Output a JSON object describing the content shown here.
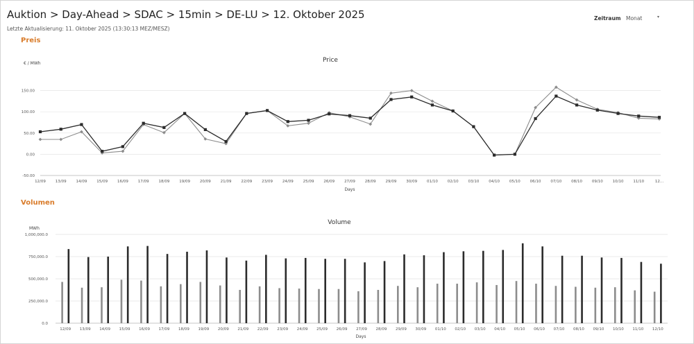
{
  "header": {
    "title": "Auktion > Day-Ahead > SDAC > 15min > DE-LU > 12. Oktober 2025",
    "last_update": "Letzte Aktualisierung: 11. Oktober 2025 (13:30:13 MEZ/MESZ)"
  },
  "controls": {
    "period_label": "Zeitraum",
    "period_value": "Monat",
    "period_caret_icon": "caret-down-icon"
  },
  "sections": {
    "price": "Preis",
    "volume": "Volumen"
  },
  "colors": {
    "accent": "#d97c2b",
    "series_dark": "#2b2b2b",
    "series_light": "#8c8c8c"
  },
  "chart_data": [
    {
      "type": "line",
      "title": "Price",
      "xlabel": "Days",
      "ylabel": "€ / MWh",
      "ylim": [
        -50,
        200
      ],
      "yticks": [
        -50,
        0,
        50,
        100,
        150
      ],
      "ytick_labels": [
        "-50.00",
        "0.00",
        "50.00",
        "100.00",
        "150.00"
      ],
      "grid": true,
      "categories": [
        "12/09",
        "13/09",
        "14/09",
        "15/09",
        "16/09",
        "17/09",
        "18/09",
        "19/09",
        "20/09",
        "21/09",
        "22/09",
        "23/09",
        "24/09",
        "25/09",
        "26/09",
        "27/09",
        "28/09",
        "29/09",
        "30/09",
        "01/10",
        "02/10",
        "03/10",
        "04/10",
        "05/10",
        "06/10",
        "07/10",
        "08/10",
        "09/10",
        "10/10",
        "11/10",
        "12..."
      ],
      "series": [
        {
          "values": [
            53,
            59,
            70,
            7,
            18,
            73,
            63,
            96,
            58,
            30,
            96,
            103,
            77,
            80,
            95,
            91,
            85,
            129,
            135,
            116,
            102,
            65,
            -2,
            0,
            84,
            137,
            116,
            104,
            96,
            90,
            87
          ],
          "color": "#2b2b2b",
          "marker": "square"
        },
        {
          "values": [
            35,
            35,
            53,
            3,
            7,
            70,
            51,
            96,
            36,
            25,
            96,
            103,
            67,
            73,
            98,
            88,
            71,
            144,
            150,
            125,
            102,
            65,
            -2,
            0,
            110,
            158,
            128,
            106,
            98,
            85,
            83
          ],
          "color": "#8c8c8c",
          "marker": "diamond"
        }
      ]
    },
    {
      "type": "bar",
      "title": "Volume",
      "xlabel": "Days",
      "ylabel": "MWh",
      "ylim": [
        0,
        1000000
      ],
      "yticks": [
        0,
        250000,
        500000,
        750000,
        1000000
      ],
      "ytick_labels": [
        "0.0",
        "250,000.0",
        "500,000.0",
        "750,000.0",
        "1,000,000.0"
      ],
      "grid": true,
      "categories": [
        "12/09",
        "13/09",
        "14/09",
        "15/09",
        "16/09",
        "17/09",
        "18/09",
        "19/09",
        "20/09",
        "21/09",
        "22/09",
        "23/09",
        "24/09",
        "25/09",
        "26/09",
        "27/09",
        "28/09",
        "29/09",
        "30/09",
        "01/10",
        "02/10",
        "03/10",
        "04/10",
        "05/10",
        "06/10",
        "07/10",
        "08/10",
        "09/10",
        "10/10",
        "11/10",
        "12/10"
      ],
      "series": [
        {
          "values": [
            465000,
            400000,
            405000,
            490000,
            480000,
            415000,
            440000,
            465000,
            425000,
            375000,
            415000,
            395000,
            390000,
            385000,
            385000,
            360000,
            375000,
            420000,
            405000,
            445000,
            445000,
            460000,
            430000,
            475000,
            445000,
            420000,
            410000,
            400000,
            405000,
            370000,
            355000
          ],
          "color": "#8c8c8c"
        },
        {
          "values": [
            835000,
            745000,
            750000,
            865000,
            870000,
            780000,
            805000,
            820000,
            740000,
            705000,
            770000,
            730000,
            735000,
            725000,
            725000,
            685000,
            700000,
            775000,
            765000,
            800000,
            810000,
            815000,
            825000,
            900000,
            865000,
            760000,
            760000,
            740000,
            735000,
            690000,
            670000
          ],
          "color": "#2b2b2b"
        }
      ]
    }
  ]
}
